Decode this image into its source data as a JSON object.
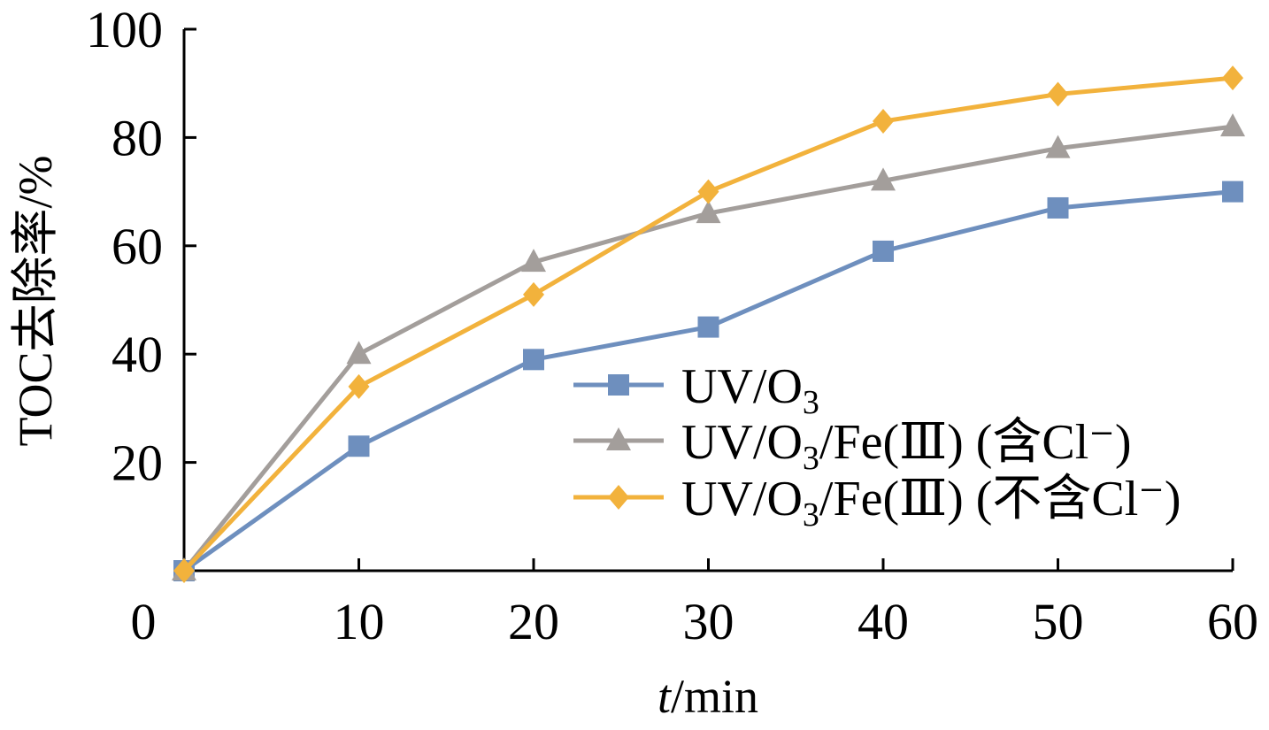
{
  "chart_data": {
    "type": "line",
    "x": [
      0,
      10,
      20,
      30,
      40,
      50,
      60
    ],
    "xlim": [
      0,
      60
    ],
    "ylim": [
      0,
      100
    ],
    "x_ticks": [
      "0",
      "10",
      "20",
      "30",
      "40",
      "50",
      "60"
    ],
    "y_ticks": [
      "20",
      "40",
      "60",
      "80",
      "100"
    ],
    "xlabel_italic": "t",
    "xlabel_rest": "/min",
    "ylabel": "TOC去除率/%",
    "grid": false,
    "legend_position": "lower-right",
    "series": [
      {
        "name": "UV/O3",
        "label_parts": {
          "a": "UV/O",
          "sub": "3",
          "b": ""
        },
        "marker": "square",
        "color": "#6E8FBE",
        "values": [
          0,
          23,
          39,
          45,
          59,
          67,
          70
        ]
      },
      {
        "name": "UV/O3/Fe(Ⅲ) (含Cl⁻)",
        "label_parts": {
          "a": "UV/O",
          "sub": "3",
          "b": "/Fe(Ⅲ) (含Cl⁻)"
        },
        "marker": "triangle",
        "color": "#A39E9B",
        "values": [
          0,
          40,
          57,
          66,
          72,
          78,
          82
        ]
      },
      {
        "name": "UV/O3/Fe(Ⅲ) (不含Cl⁻)",
        "label_parts": {
          "a": "UV/O",
          "sub": "3",
          "b": "/Fe(Ⅲ) (不含Cl⁻)"
        },
        "marker": "diamond",
        "color": "#F2B23C",
        "values": [
          0,
          34,
          51,
          70,
          83,
          88,
          91
        ]
      }
    ]
  }
}
